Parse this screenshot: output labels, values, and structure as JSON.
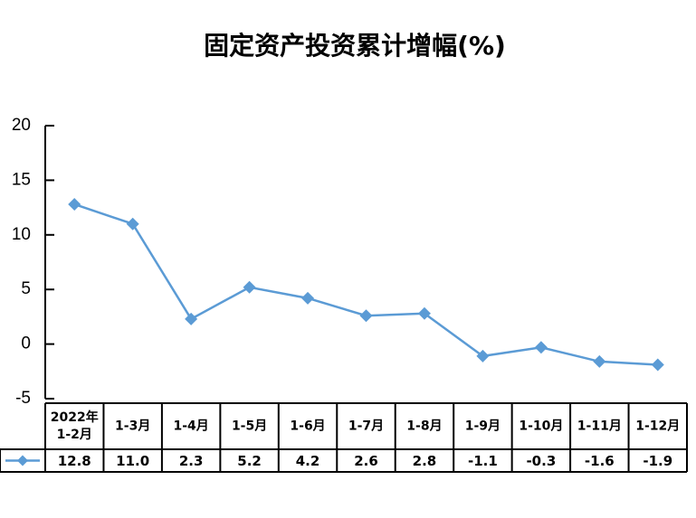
{
  "chart_data": {
    "type": "line",
    "title": "固定资产投资累计增幅(%)",
    "categories": [
      "2022年\n1-2月",
      "1-3月",
      "1-4月",
      "1-5月",
      "1-6月",
      "1-7月",
      "1-8月",
      "1-9月",
      "1-10月",
      "1-11月",
      "1-12月"
    ],
    "series": [
      {
        "color": "#5b9bd5",
        "values": [
          12.8,
          11.0,
          2.3,
          5.2,
          4.2,
          2.6,
          2.8,
          -1.1,
          -0.3,
          -1.6,
          -1.9
        ],
        "value_labels": [
          "12.8",
          "11.0",
          "2.3",
          "5.2",
          "4.2",
          "2.6",
          "2.8",
          "-1.1",
          "-0.3",
          "-1.6",
          "-1.9"
        ]
      }
    ],
    "ylim": [
      -5,
      20
    ],
    "yticks": [
      20,
      15,
      10,
      5,
      0,
      -5
    ],
    "grid": false,
    "data_table": true
  }
}
